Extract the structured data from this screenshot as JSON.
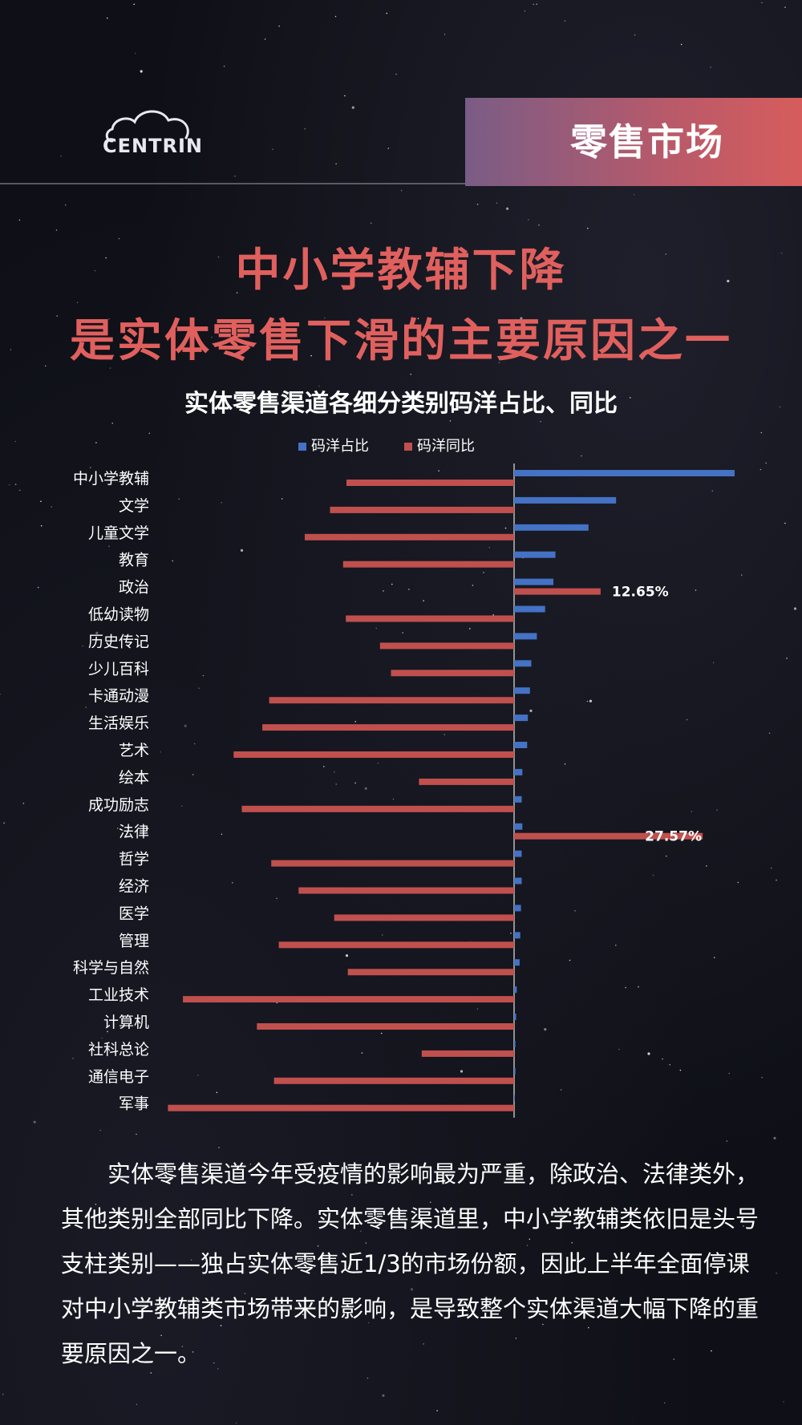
{
  "brand": {
    "logo_text": "CENTRIN"
  },
  "section": {
    "label": "零售市场"
  },
  "headline": {
    "line1": "中小学教辅下降",
    "line2": "是实体零售下滑的主要原因之一"
  },
  "colors": {
    "share": "#4472c4",
    "yoy": "#c0504d",
    "headline": "#e0605e",
    "banner_start": "#7a5c86",
    "banner_end": "#d65c5c"
  },
  "chart_data": {
    "type": "bar",
    "orientation": "horizontal",
    "title": "实体零售渠道各细分类别码洋占比、同比",
    "legend_position": "top",
    "categories": [
      "中小学教辅",
      "文学",
      "儿童文学",
      "教育",
      "政治",
      "低幼读物",
      "历史传记",
      "少儿百科",
      "卡通动漫",
      "生活娱乐",
      "艺术",
      "绘本",
      "成功励志",
      "法律",
      "哲学",
      "经济",
      "医学",
      "管理",
      "科学与自然",
      "工业技术",
      "计算机",
      "社科总论",
      "通信电子",
      "军事"
    ],
    "series": [
      {
        "name": "码洋占比",
        "color": "#4472c4",
        "values": [
          32.0,
          14.8,
          10.8,
          6.0,
          5.7,
          4.5,
          3.3,
          2.5,
          2.3,
          2.0,
          1.9,
          1.2,
          1.1,
          1.2,
          1.1,
          1.1,
          1.0,
          0.9,
          0.8,
          0.4,
          0.3,
          0.2,
          0.2,
          0.1
        ]
      },
      {
        "name": "码洋同比",
        "color": "#c0504d",
        "values": [
          -24.5,
          -26.9,
          -30.6,
          -25.0,
          12.65,
          -24.6,
          -19.6,
          -18.0,
          -35.8,
          -36.8,
          -41.0,
          -13.9,
          -39.8,
          27.57,
          -35.5,
          -31.5,
          -26.3,
          -34.4,
          -24.3,
          -48.4,
          -37.6,
          -13.5,
          -35.1,
          -50.6
        ]
      }
    ],
    "data_labels": [
      {
        "category": "政治",
        "text": "12.65%"
      },
      {
        "category": "法律",
        "text": "27.57%"
      }
    ],
    "grid": false
  },
  "body_text": "实体零售渠道今年受疫情的影响最为严重，除政治、法律类外，其他类别全部同比下降。实体零售渠道里，中小学教辅类依旧是头号支柱类别——独占实体零售近1/3的市场份额，因此上半年全面停课对中小学教辅类市场带来的影响，是导致整个实体渠道大幅下降的重要原因之一。"
}
